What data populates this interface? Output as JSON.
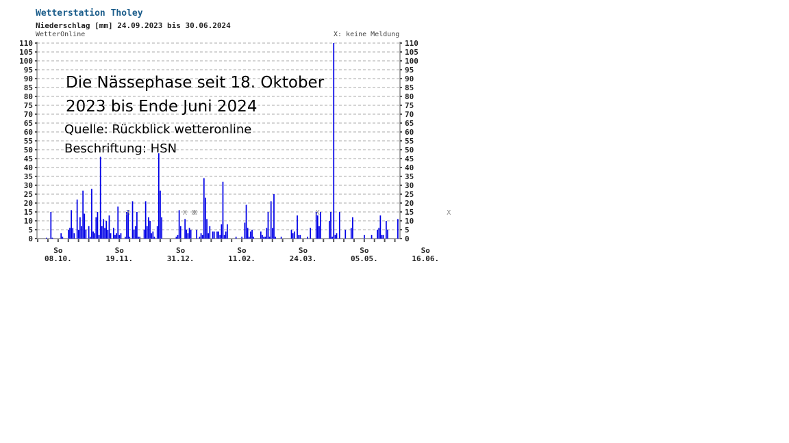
{
  "header": {
    "title": "Wetterstation Tholey",
    "subtitle": "Niederschlag [mm] 24.09.2023 bis 30.06.2024",
    "source": "WetterOnline",
    "legend_note": "X: keine Meldung"
  },
  "annotation": {
    "line1": "Die Nässephase seit 18. Oktober",
    "line2": "2023 bis Ende Juni 2024",
    "line3": "Quelle: Rückblick wetteronline",
    "line4": "Beschriftung: HSN"
  },
  "colors": {
    "bars": "#0000e6",
    "grid": "#aaaaaa",
    "axis": "#555555",
    "title": "#1a5c8a",
    "missing": "#888888"
  },
  "chart_data": {
    "type": "bar",
    "title": "Wetterstation Tholey",
    "subtitle": "Niederschlag [mm] 24.09.2023 bis 30.06.2024",
    "ylabel": "",
    "xlabel": "",
    "ylim": [
      0,
      110
    ],
    "yticks": [
      "0",
      "5",
      "10",
      "15",
      "20",
      "25",
      "30",
      "35",
      "40",
      "45",
      "50",
      "55",
      "60",
      "65",
      "70",
      "75",
      "80",
      "85",
      "90",
      "95",
      "100",
      "105",
      "110"
    ],
    "grid": true,
    "x_start": "24.09.2023",
    "x_end": "30.06.2024",
    "x_ticks": [
      {
        "weekday": "So",
        "date": "08.10.",
        "day_index": 14
      },
      {
        "weekday": "So",
        "date": "19.11.",
        "day_index": 56
      },
      {
        "weekday": "So",
        "date": "31.12.",
        "day_index": 98
      },
      {
        "weekday": "So",
        "date": "11.02.",
        "day_index": 140
      },
      {
        "weekday": "So",
        "date": "24.03.",
        "day_index": 182
      },
      {
        "weekday": "So",
        "date": "05.05.",
        "day_index": 224
      },
      {
        "weekday": "So",
        "date": "16.06.",
        "day_index": 266
      }
    ],
    "missing_marker": "X",
    "missing_days": [
      62,
      101,
      107,
      108,
      192,
      282
    ],
    "values": [
      0,
      0,
      0,
      0,
      0,
      0,
      0.5,
      0,
      0,
      15,
      0.5,
      0,
      0,
      0,
      0,
      0,
      3,
      1,
      0,
      0,
      0,
      5,
      6,
      16,
      6,
      3,
      0,
      22,
      5,
      12,
      7,
      27,
      14,
      5,
      0,
      7,
      1,
      28,
      4,
      3,
      12,
      15,
      2,
      46,
      7,
      11,
      6,
      10,
      5,
      13,
      3,
      0,
      6,
      2,
      3,
      18,
      2,
      3,
      0,
      0,
      1,
      15,
      16,
      1,
      0,
      21,
      5,
      7,
      15,
      1,
      1,
      0,
      0,
      5,
      21,
      7,
      12,
      10,
      3,
      4,
      1,
      0,
      7,
      48,
      27,
      12,
      0,
      0,
      0,
      0,
      0,
      0,
      0,
      0,
      0,
      1,
      2,
      16,
      7,
      0,
      0,
      11,
      5,
      3,
      6,
      5,
      0,
      0,
      0,
      5,
      0,
      1,
      3,
      2,
      34,
      23,
      11,
      3,
      7,
      0,
      4,
      4,
      0,
      4,
      4,
      2,
      8,
      32,
      2,
      4,
      8,
      0,
      0,
      0,
      0,
      0,
      1,
      0,
      0,
      0,
      1,
      0,
      9,
      19,
      6,
      1,
      4,
      5,
      1,
      0,
      0,
      0,
      0,
      4,
      2,
      1,
      1,
      6,
      15,
      1,
      21,
      6,
      25,
      1,
      0,
      0,
      0,
      1,
      0,
      0,
      0,
      0,
      0,
      0,
      5,
      3,
      4,
      0,
      13,
      2,
      2,
      0,
      0,
      0,
      0,
      1,
      0,
      6,
      0,
      0,
      0,
      15,
      13,
      7,
      15,
      0,
      0,
      0,
      0,
      0,
      10,
      15,
      1,
      110,
      2,
      3,
      0,
      15,
      0,
      0,
      0,
      5,
      0,
      0,
      0,
      6,
      12,
      0,
      0,
      0,
      0,
      0,
      0,
      0,
      2,
      0,
      0,
      0,
      0,
      2,
      0,
      0,
      0,
      5,
      6,
      13,
      2,
      2,
      0,
      10,
      5,
      0,
      0,
      0,
      0,
      0,
      0,
      11,
      0
    ]
  }
}
